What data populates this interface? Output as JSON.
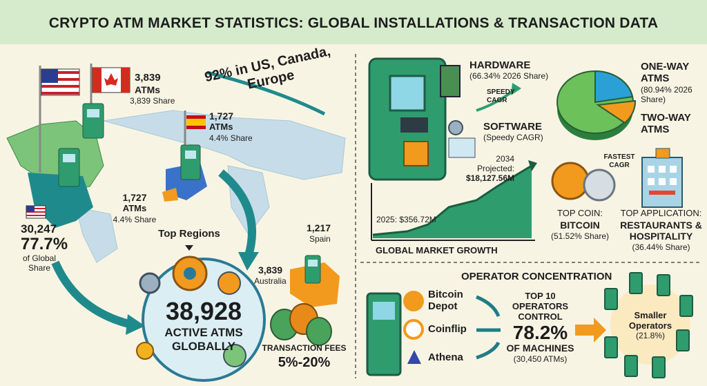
{
  "header": {
    "title": "CRYPTO ATM MARKET STATISTICS: GLOBAL INSTALLATIONS & TRANSACTION DATA"
  },
  "regions": {
    "canada": {
      "count": "3,839",
      "unit": "ATMs",
      "share": "3,839 Share"
    },
    "tagline": "92% in US, Canada, Europe",
    "spain_flag": {
      "count": "1,727",
      "unit": "ATMs",
      "share": "4.4% Share"
    },
    "europe": {
      "count": "1,727",
      "unit": "ATMs",
      "share": "4.4% Share"
    },
    "us": {
      "count": "30,247",
      "share": "77.7%",
      "note": "of Global Share"
    },
    "top_regions": "Top Regions",
    "spain": {
      "count": "1,217",
      "label": "Spain"
    },
    "australia": {
      "count": "3,839",
      "label": "Australia"
    },
    "total": {
      "count": "38,928",
      "label": "ACTIVE ATMS GLOBALLY"
    },
    "fees": {
      "label": "TRANSACTION FEES",
      "range": "5%-20%"
    }
  },
  "market": {
    "hardware": {
      "label": "HARDWARE",
      "share": "(66.34% 2026 Share)"
    },
    "speedy": "SPEEDY CAGR",
    "software": {
      "label": "SOFTWARE",
      "share": "(Speedy CAGR)"
    },
    "projection": {
      "year": "2034",
      "label": "Projected:",
      "value": "$18,127.56M"
    },
    "start": "2025: $356.72M",
    "growth_title": "GLOBAL MARKET GROWTH",
    "one_way": {
      "label": "ONE-WAY ATMS",
      "share": "(80.94% 2026 Share)"
    },
    "two_way": "TWO-WAY ATMS",
    "fastest": "FASTEST CAGR",
    "coin": {
      "label": "TOP COIN:",
      "name": "BITCOIN",
      "share": "(51.52% Share)"
    },
    "application": {
      "label": "TOP APPLICATION:",
      "name": "RESTAURANTS & HOSPITALITY",
      "share": "(36.44% Share)"
    }
  },
  "operators": {
    "title": "OPERATOR CONCENTRATION",
    "names": [
      "Bitcoin Depot",
      "Coinflip",
      "Athena"
    ],
    "top10": {
      "label": "TOP 10 OPERATORS CONTROL",
      "value": "78.2%",
      "unit": "OF MACHINES",
      "count": "(30,450 ATMs)"
    },
    "smaller": {
      "label": "Smaller Operators",
      "share": "(21.8%)"
    }
  }
}
